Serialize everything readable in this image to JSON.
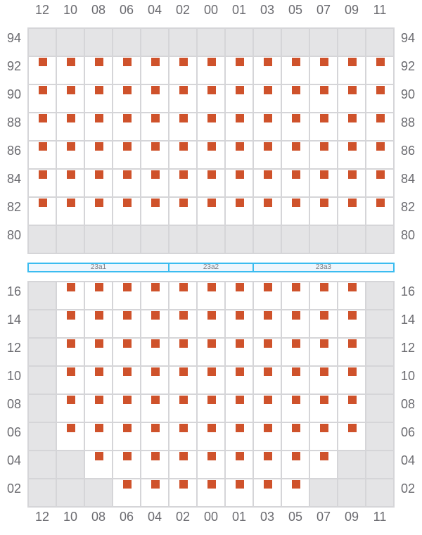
{
  "columns": [
    "12",
    "10",
    "08",
    "06",
    "04",
    "02",
    "00",
    "01",
    "03",
    "05",
    "07",
    "09",
    "11"
  ],
  "colors": {
    "seat": "#cf522b",
    "unavailable": "#e4e4e6",
    "gridline": "#d5d5d8",
    "section_border": "#3bbcf0",
    "section_fill": "#eef6fd"
  },
  "upper_block": {
    "rows": [
      {
        "label": "94",
        "cells": "ggggggggggggg"
      },
      {
        "label": "92",
        "cells": "sssssssssssss"
      },
      {
        "label": "90",
        "cells": "sssssssssssss"
      },
      {
        "label": "88",
        "cells": "sssssssssssss"
      },
      {
        "label": "86",
        "cells": "sssssssssssss"
      },
      {
        "label": "84",
        "cells": "sssssssssssss"
      },
      {
        "label": "82",
        "cells": "sssssssssssss"
      },
      {
        "label": "80",
        "cells": "ggggggggggggg"
      }
    ]
  },
  "sections": [
    {
      "label": "23a1",
      "span": 5
    },
    {
      "label": "23a2",
      "span": 3
    },
    {
      "label": "23a3",
      "span": 5
    }
  ],
  "lower_block": {
    "rows": [
      {
        "label": "16",
        "cells": "gsssssssssssg"
      },
      {
        "label": "14",
        "cells": "gsssssssssssg"
      },
      {
        "label": "12",
        "cells": "gsssssssssssg"
      },
      {
        "label": "10",
        "cells": "gsssssssssssg"
      },
      {
        "label": "08",
        "cells": "gsssssssssssg"
      },
      {
        "label": "06",
        "cells": "gsssssssssssg"
      },
      {
        "label": "04",
        "cells": "ggsssssssssgg"
      },
      {
        "label": "02",
        "cells": "gggsssssssggg"
      }
    ]
  },
  "legend_cell_codes": {
    "g": "unavailable",
    "s": "seat"
  }
}
